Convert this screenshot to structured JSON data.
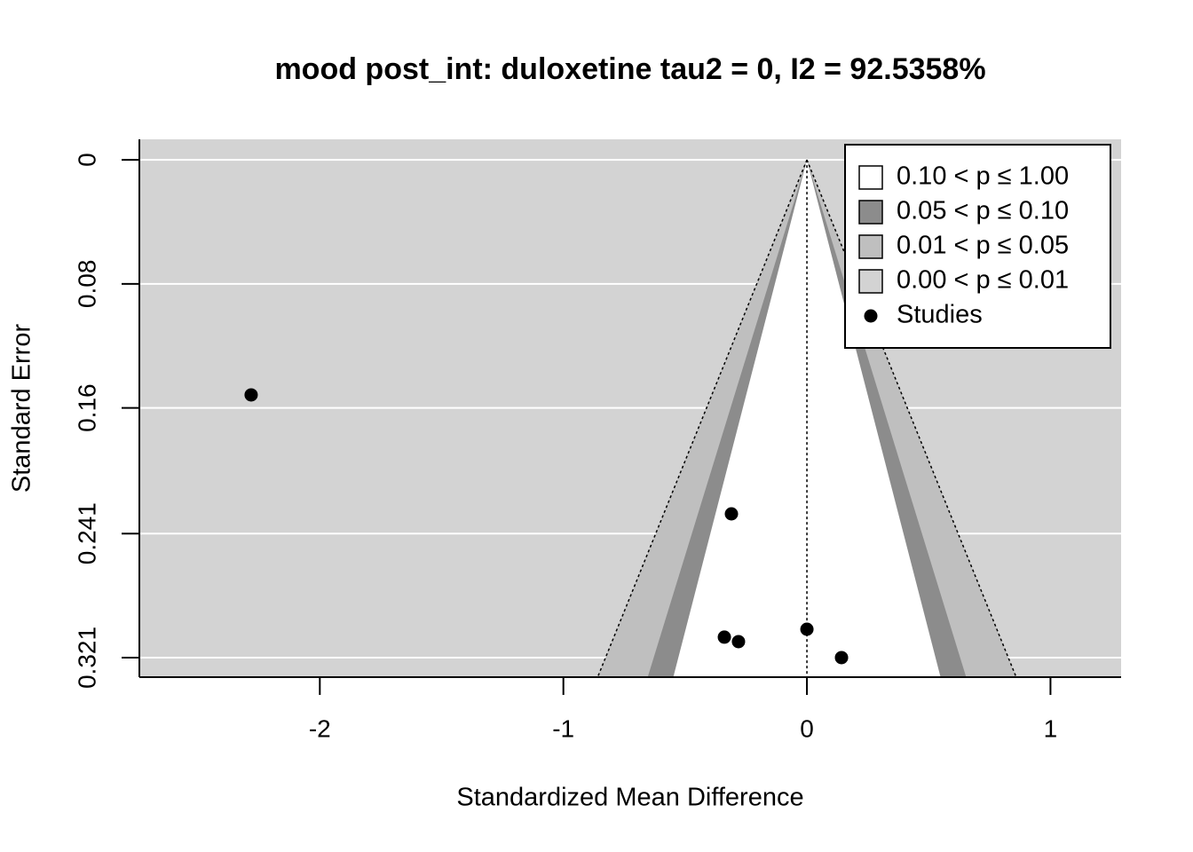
{
  "chart_data": {
    "type": "scatter",
    "title": "mood post_int: duloxetine tau2 = 0, I2 = 92.5358%",
    "x_label": "Standardized Mean Difference",
    "y_label": "Standard Error",
    "x": [
      -2.282,
      -0.31,
      -0.339,
      -0.281,
      0.0,
      0.142
    ],
    "series": [
      {
        "name": "Studies",
        "color": "#000000",
        "values": [
          0.1516,
          0.2283,
          0.3078,
          0.3107,
          0.3027,
          0.321
        ]
      }
    ],
    "xlim": [
      -2.741,
      1.29
    ],
    "xticks": [
      -2,
      -1,
      0,
      1
    ],
    "ylim": [
      -0.0132,
      0.3336
    ],
    "yticks": [
      0,
      0.08,
      0.16,
      0.241,
      0.321
    ],
    "y_reversed": true,
    "grid": true,
    "grid_color": "#ffffff",
    "reference_x": 0,
    "contours": [
      {
        "label": "0.10 < p ≤ 1.00",
        "p_lower": 0.1,
        "color": "#ffffff"
      },
      {
        "label": "0.05 < p ≤ 0.10",
        "p_lower": 0.05,
        "color": "#8c8c8c"
      },
      {
        "label": "0.01 < p ≤ 0.05",
        "p_lower": 0.01,
        "color": "#bfbfbf"
      },
      {
        "label": "0.00 < p ≤ 0.01",
        "p_lower": 0,
        "color": "#d3d3d3"
      }
    ],
    "legend": "top-right"
  }
}
